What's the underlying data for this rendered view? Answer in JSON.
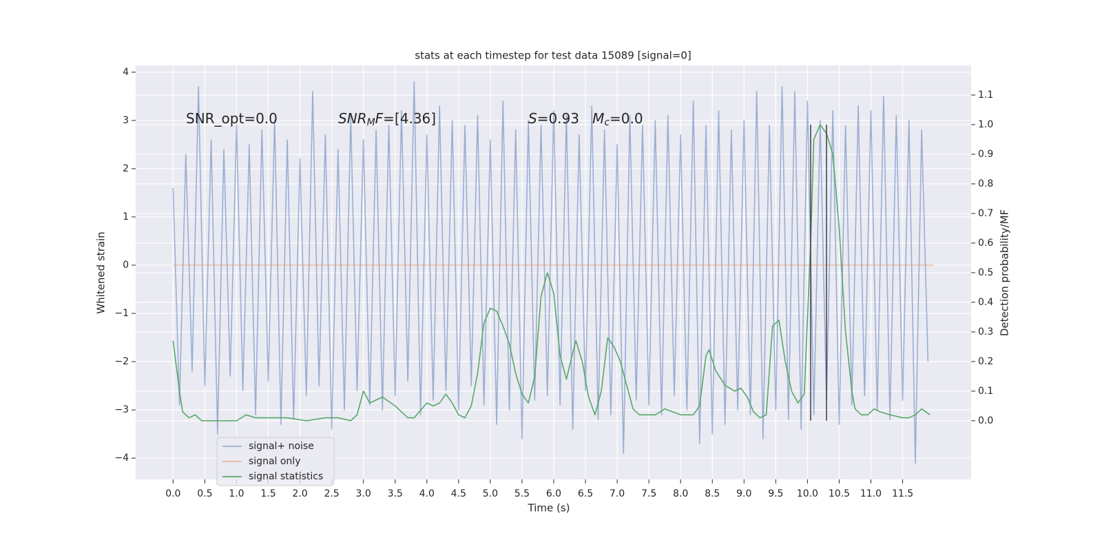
{
  "chart_data": {
    "type": "line",
    "title": "stats at each timestep for test data 15089 [signal=0]",
    "xlabel": "Time (s)",
    "ylabel": "Whitened strain",
    "y2label": "Detection probability/MF",
    "xlim": [
      -0.59,
      12.58
    ],
    "ylim": [
      -4.44,
      4.14
    ],
    "y2lim": [
      -0.198,
      1.2
    ],
    "xticks": [
      {
        "value": 0,
        "label": "0.0"
      },
      {
        "value": 0.5,
        "label": "0.5"
      },
      {
        "value": 1,
        "label": "1.0"
      },
      {
        "value": 1.5,
        "label": "1.5"
      },
      {
        "value": 2,
        "label": "2.0"
      },
      {
        "value": 2.5,
        "label": "2.5"
      },
      {
        "value": 3,
        "label": "3.0"
      },
      {
        "value": 3.5,
        "label": "3.5"
      },
      {
        "value": 4,
        "label": "4.0"
      },
      {
        "value": 4.5,
        "label": "4.5"
      },
      {
        "value": 5,
        "label": "5.0"
      },
      {
        "value": 5.5,
        "label": "5.5"
      },
      {
        "value": 6,
        "label": "6.0"
      },
      {
        "value": 6.5,
        "label": "6.5"
      },
      {
        "value": 7,
        "label": "7.0"
      },
      {
        "value": 7.5,
        "label": "7.5"
      },
      {
        "value": 8,
        "label": "8.0"
      },
      {
        "value": 8.5,
        "label": "8.5"
      },
      {
        "value": 9,
        "label": "9.0"
      },
      {
        "value": 9.5,
        "label": "9.5"
      },
      {
        "value": 10,
        "label": "10.0"
      },
      {
        "value": 10.5,
        "label": "10.5"
      },
      {
        "value": 11,
        "label": "11.0"
      },
      {
        "value": 11.5,
        "label": "11.5"
      }
    ],
    "yticks": [
      {
        "value": -4,
        "label": "−4"
      },
      {
        "value": -3,
        "label": "−3"
      },
      {
        "value": -2,
        "label": "−2"
      },
      {
        "value": -1,
        "label": "−1"
      },
      0,
      1,
      2,
      3,
      4
    ],
    "y2ticks": [
      {
        "value": 0,
        "label": "0.0"
      },
      {
        "value": 0.1,
        "label": "0.1"
      },
      {
        "value": 0.2,
        "label": "0.2"
      },
      {
        "value": 0.3,
        "label": "0.3"
      },
      {
        "value": 0.4,
        "label": "0.4"
      },
      {
        "value": 0.5,
        "label": "0.5"
      },
      {
        "value": 0.6,
        "label": "0.6"
      },
      {
        "value": 0.7,
        "label": "0.7"
      },
      {
        "value": 0.8,
        "label": "0.8"
      },
      {
        "value": 0.9,
        "label": "0.9"
      },
      {
        "value": 1,
        "label": "1.0"
      },
      {
        "value": 1.1,
        "label": "1.1"
      }
    ],
    "grid": true,
    "legend": "lower left",
    "series": [
      {
        "name": "signal+ noise",
        "color": "#4c72b0",
        "alpha": 0.5,
        "x": [
          0,
          0.1,
          0.2,
          0.3,
          0.4,
          0.5,
          0.6,
          0.7,
          0.8,
          0.9,
          1,
          1.1,
          1.2,
          1.3,
          1.4,
          1.5,
          1.6,
          1.7,
          1.8,
          1.9,
          2,
          2.1,
          2.2,
          2.3,
          2.4,
          2.5,
          2.6,
          2.7,
          2.8,
          2.9,
          3,
          3.1,
          3.2,
          3.3,
          3.4,
          3.5,
          3.6,
          3.7,
          3.8,
          3.9,
          4,
          4.1,
          4.2,
          4.3,
          4.4,
          4.5,
          4.6,
          4.7,
          4.8,
          4.9,
          5,
          5.1,
          5.2,
          5.3,
          5.4,
          5.5,
          5.6,
          5.7,
          5.8,
          5.9,
          6,
          6.1,
          6.2,
          6.3,
          6.4,
          6.5,
          6.6,
          6.7,
          6.8,
          6.9,
          7,
          7.1,
          7.2,
          7.3,
          7.4,
          7.5,
          7.6,
          7.7,
          7.8,
          7.9,
          8,
          8.1,
          8.2,
          8.3,
          8.4,
          8.5,
          8.6,
          8.7,
          8.8,
          8.9,
          9,
          9.1,
          9.2,
          9.3,
          9.4,
          9.5,
          9.6,
          9.7,
          9.8,
          9.9,
          10,
          10.1,
          10.2,
          10.3,
          10.4,
          10.5,
          10.6,
          10.7,
          10.8,
          10.9,
          11,
          11.1,
          11.2,
          11.3,
          11.4,
          11.5,
          11.6,
          11.7,
          11.8,
          11.9
        ],
        "values": [
          1.6,
          -2.9,
          2.3,
          -2.2,
          3.7,
          -2.5,
          2.6,
          -3.5,
          2.4,
          -2.3,
          2.9,
          -2.6,
          2.5,
          -3.1,
          2.8,
          -2.4,
          3.0,
          -3.3,
          2.6,
          -3.2,
          2.2,
          -2.7,
          3.6,
          -2.5,
          2.7,
          -3.4,
          2.4,
          -3.0,
          3.1,
          -2.6,
          2.6,
          -2.9,
          2.8,
          -3.0,
          2.9,
          -2.7,
          3.2,
          -2.4,
          3.8,
          -3.1,
          2.7,
          -2.8,
          3.3,
          -2.6,
          3.0,
          -3.0,
          2.9,
          -2.5,
          3.1,
          -2.9,
          2.6,
          -3.3,
          3.4,
          -3.0,
          2.8,
          -3.6,
          3.0,
          -2.8,
          2.9,
          -2.7,
          3.2,
          -2.9,
          3.1,
          -3.4,
          2.7,
          -2.6,
          3.3,
          -3.2,
          2.8,
          -3.1,
          2.5,
          -3.9,
          3.1,
          -2.8,
          2.9,
          -2.9,
          3.0,
          -3.1,
          3.1,
          -2.7,
          2.7,
          -3.0,
          3.4,
          -3.7,
          2.9,
          -3.5,
          3.2,
          -3.3,
          2.8,
          -3.0,
          3.0,
          -3.1,
          3.6,
          -3.6,
          2.9,
          -3.0,
          3.7,
          -3.2,
          3.6,
          -3.4,
          3.4,
          -3.1,
          3.0,
          -2.8,
          3.2,
          -3.3,
          2.9,
          -2.9,
          3.3,
          -2.7,
          3.2,
          -3.0,
          3.5,
          -3.2,
          3.1,
          -2.8,
          3.0,
          -4.1,
          2.8,
          -2.0
        ]
      },
      {
        "name": "signal only",
        "color": "#dd8452",
        "alpha": 0.5,
        "x": [
          0,
          11.99
        ],
        "values": [
          0,
          0
        ]
      },
      {
        "name": "signal statistics",
        "color": "#55a868",
        "alpha": 1,
        "axis": "y2",
        "x": [
          0,
          0.1,
          0.15,
          0.25,
          0.35,
          0.45,
          0.7,
          1,
          1.15,
          1.3,
          1.5,
          1.8,
          2.1,
          2.4,
          2.6,
          2.8,
          2.9,
          3,
          3.1,
          3.2,
          3.3,
          3.5,
          3.7,
          3.8,
          4,
          4.1,
          4.2,
          4.3,
          4.4,
          4.5,
          4.6,
          4.7,
          4.8,
          4.9,
          5,
          5.1,
          5.2,
          5.3,
          5.4,
          5.5,
          5.6,
          5.7,
          5.8,
          5.9,
          6,
          6.1,
          6.2,
          6.3,
          6.35,
          6.45,
          6.55,
          6.65,
          6.75,
          6.85,
          6.95,
          7.05,
          7.15,
          7.25,
          7.35,
          7.6,
          7.75,
          8,
          8.2,
          8.3,
          8.4,
          8.45,
          8.55,
          8.7,
          8.85,
          8.95,
          9.05,
          9.15,
          9.25,
          9.35,
          9.45,
          9.55,
          9.65,
          9.75,
          9.85,
          9.95,
          10.05,
          10.1,
          10.2,
          10.3,
          10.4,
          10.5,
          10.6,
          10.7,
          10.75,
          10.85,
          10.95,
          11.05,
          11.15,
          11.3,
          11.5,
          11.6,
          11.7,
          11.8,
          11.93
        ],
        "values": [
          0.27,
          0.1,
          0.03,
          0.01,
          0.02,
          0,
          0,
          0,
          0.02,
          0.01,
          0.01,
          0.01,
          0,
          0.01,
          0.01,
          0,
          0.02,
          0.1,
          0.06,
          0.07,
          0.08,
          0.05,
          0.01,
          0.01,
          0.06,
          0.05,
          0.06,
          0.09,
          0.06,
          0.02,
          0.01,
          0.05,
          0.16,
          0.33,
          0.38,
          0.37,
          0.32,
          0.26,
          0.16,
          0.09,
          0.06,
          0.15,
          0.42,
          0.5,
          0.43,
          0.22,
          0.14,
          0.23,
          0.27,
          0.2,
          0.08,
          0.02,
          0.1,
          0.28,
          0.25,
          0.2,
          0.12,
          0.04,
          0.02,
          0.02,
          0.04,
          0.02,
          0.02,
          0.05,
          0.22,
          0.24,
          0.17,
          0.12,
          0.1,
          0.11,
          0.08,
          0.03,
          0.01,
          0.02,
          0.32,
          0.34,
          0.2,
          0.1,
          0.06,
          0.09,
          0.6,
          0.95,
          1.0,
          0.97,
          0.9,
          0.65,
          0.3,
          0.1,
          0.04,
          0.02,
          0.02,
          0.04,
          0.03,
          0.02,
          0.01,
          0.01,
          0.02,
          0.04,
          0.02
        ]
      }
    ],
    "vlines": {
      "color": "#3c3c4c",
      "x": [
        10.05,
        10.3
      ],
      "ymin": 0,
      "ymax": 1.0
    },
    "annotations": [
      [
        {
          "text": "SNR_opt=0.0"
        }
      ],
      [
        {
          "text": "SNR",
          "italic": true
        },
        {
          "text": "M",
          "italic": true,
          "sub": true
        },
        {
          "text": "F",
          "italic": true
        },
        {
          "text": "=[4.36]"
        }
      ],
      [
        {
          "text": "S",
          "italic": true
        },
        {
          "text": "=0.93   "
        },
        {
          "text": "M",
          "italic": true
        },
        {
          "text": "c",
          "italic": true,
          "sub": true
        },
        {
          "text": "=0.0"
        }
      ]
    ]
  }
}
